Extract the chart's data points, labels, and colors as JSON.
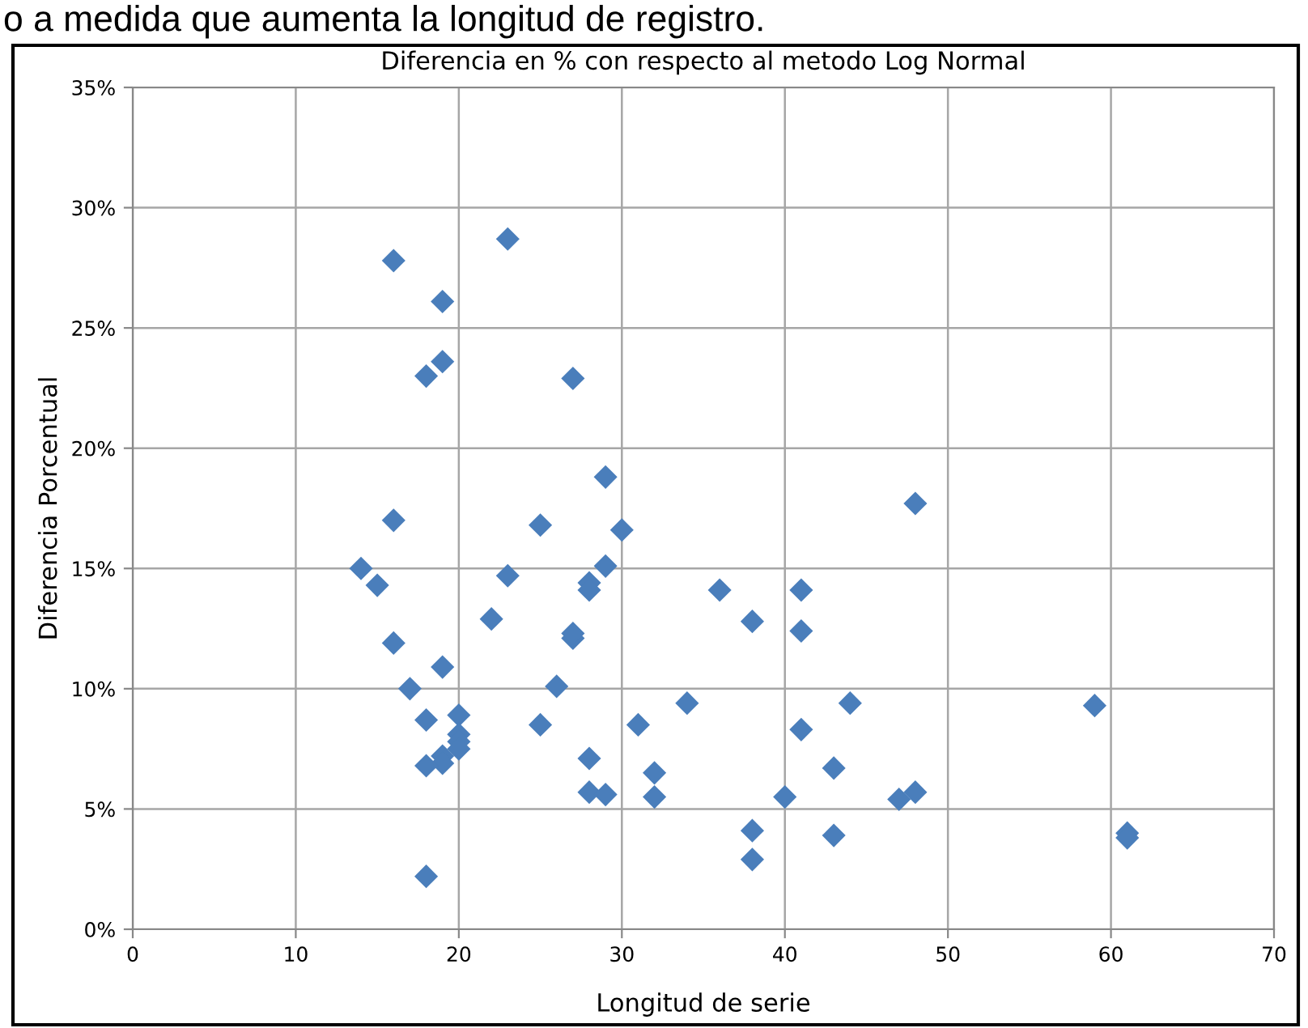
{
  "chart_data": {
    "type": "scatter",
    "title": "Diferencia en % con respecto al metodo Log Normal",
    "xlabel": "Longitud de serie",
    "ylabel": "Diferencia Porcentual",
    "annotations": [
      "o a medida que aumenta la longitud de registro."
    ],
    "series": [
      {
        "color": "#4a7ebb",
        "x": [
          16,
          23,
          19,
          19,
          18,
          27,
          29,
          48,
          16,
          25,
          30,
          29,
          14,
          23,
          15,
          28,
          28,
          36,
          41,
          22,
          38,
          27,
          27,
          41,
          16,
          19,
          26,
          17,
          34,
          44,
          59,
          20,
          18,
          25,
          31,
          41,
          20,
          20,
          20,
          19,
          28,
          19,
          18,
          43,
          32,
          28,
          29,
          32,
          40,
          47,
          48,
          38,
          43,
          61,
          61,
          38,
          18
        ],
        "values": [
          27.8,
          28.7,
          26.1,
          23.6,
          23.0,
          22.9,
          18.8,
          17.7,
          17.0,
          16.8,
          16.6,
          15.1,
          15.0,
          14.7,
          14.3,
          14.4,
          14.1,
          14.1,
          14.1,
          12.9,
          12.8,
          12.1,
          12.3,
          12.4,
          11.9,
          10.9,
          10.1,
          10.0,
          9.4,
          9.4,
          9.3,
          8.9,
          8.7,
          8.5,
          8.5,
          8.3,
          8.1,
          7.8,
          7.5,
          7.2,
          7.1,
          6.9,
          6.8,
          6.7,
          6.5,
          5.7,
          5.6,
          5.5,
          5.5,
          5.4,
          5.7,
          4.1,
          3.9,
          4.0,
          3.8,
          2.9,
          2.2
        ]
      }
    ],
    "marker": "diamond",
    "grid": true,
    "legend": false,
    "xlim": [
      0,
      70
    ],
    "xticks": [
      0,
      10,
      20,
      30,
      40,
      50,
      60,
      70
    ],
    "ylim": [
      0,
      35
    ],
    "yticks": [
      {
        "value": 0,
        "label": "0%"
      },
      {
        "value": 5,
        "label": "5%"
      },
      {
        "value": 10,
        "label": "10%"
      },
      {
        "value": 15,
        "label": "15%"
      },
      {
        "value": 20,
        "label": "20%"
      },
      {
        "value": 25,
        "label": "25%"
      },
      {
        "value": 30,
        "label": "30%"
      },
      {
        "value": 35,
        "label": "35%"
      }
    ]
  }
}
